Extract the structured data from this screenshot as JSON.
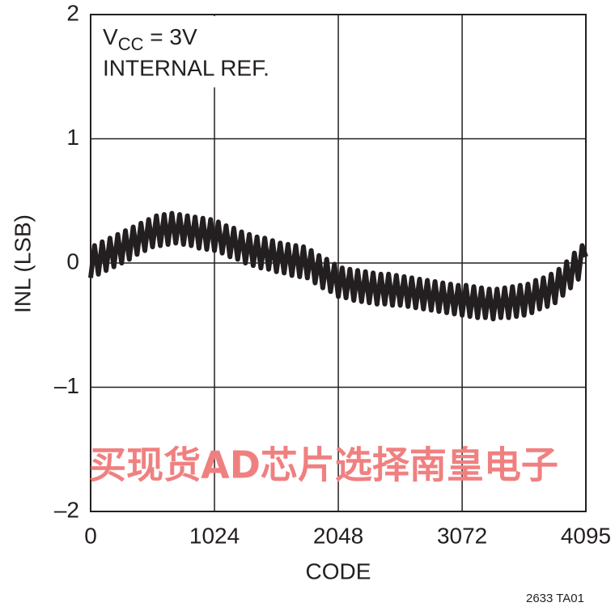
{
  "chart_data": {
    "type": "line",
    "ylabel": "INL (LSB)",
    "xlabel": "CODE",
    "annotation_vcc": {
      "base": "V",
      "subscript": "CC",
      "text": " = 3V"
    },
    "annotation_ref": "INTERNAL REF.",
    "watermark": "买现货AD芯片选择南皇电子",
    "footer": "2633 TA01",
    "xlim": [
      0,
      4095
    ],
    "xticks": [
      0,
      1024,
      2048,
      3072,
      4095
    ],
    "ylim": [
      -2,
      2
    ],
    "yticks": [
      {
        "value": -2,
        "label": "–2"
      },
      {
        "value": -1,
        "label": "–1"
      },
      0,
      1,
      2
    ],
    "grid": true,
    "x": [
      0,
      32,
      64,
      96,
      128,
      160,
      192,
      224,
      256,
      288,
      320,
      352,
      384,
      416,
      448,
      480,
      512,
      544,
      576,
      608,
      640,
      672,
      704,
      736,
      768,
      800,
      832,
      864,
      896,
      928,
      960,
      992,
      1024,
      1056,
      1088,
      1120,
      1152,
      1184,
      1216,
      1248,
      1280,
      1312,
      1344,
      1376,
      1408,
      1440,
      1472,
      1504,
      1536,
      1568,
      1600,
      1632,
      1664,
      1696,
      1728,
      1760,
      1792,
      1824,
      1856,
      1888,
      1920,
      1952,
      1984,
      2016,
      2048,
      2080,
      2112,
      2144,
      2176,
      2208,
      2240,
      2272,
      2304,
      2336,
      2368,
      2400,
      2432,
      2464,
      2496,
      2528,
      2560,
      2592,
      2624,
      2656,
      2688,
      2720,
      2752,
      2784,
      2816,
      2848,
      2880,
      2912,
      2944,
      2976,
      3008,
      3040,
      3072,
      3104,
      3136,
      3168,
      3200,
      3232,
      3264,
      3296,
      3328,
      3360,
      3392,
      3424,
      3456,
      3488,
      3520,
      3552,
      3584,
      3616,
      3648,
      3680,
      3712,
      3744,
      3776,
      3808,
      3840,
      3872,
      3904,
      3936,
      3968,
      4000,
      4032,
      4064,
      4095
    ],
    "series": [
      {
        "color": "#231f20",
        "values": [
          -0.12,
          0.14,
          -0.09,
          0.17,
          -0.06,
          0.2,
          -0.03,
          0.23,
          0,
          0.26,
          0.03,
          0.29,
          0.07,
          0.32,
          0.1,
          0.35,
          0.13,
          0.38,
          0.14,
          0.39,
          0.15,
          0.4,
          0.16,
          0.39,
          0.15,
          0.38,
          0.14,
          0.37,
          0.12,
          0.36,
          0.11,
          0.35,
          0.1,
          0.33,
          0.08,
          0.3,
          0.05,
          0.28,
          0.03,
          0.25,
          0,
          0.23,
          -0.02,
          0.21,
          -0.04,
          0.2,
          -0.05,
          0.18,
          -0.07,
          0.16,
          -0.08,
          0.15,
          -0.1,
          0.14,
          -0.11,
          0.13,
          -0.12,
          0.1,
          -0.16,
          0.06,
          -0.2,
          0.03,
          -0.23,
          -0.01,
          -0.27,
          -0.04,
          -0.28,
          -0.05,
          -0.3,
          -0.06,
          -0.31,
          -0.07,
          -0.32,
          -0.08,
          -0.33,
          -0.09,
          -0.33,
          -0.09,
          -0.34,
          -0.1,
          -0.34,
          -0.11,
          -0.35,
          -0.12,
          -0.36,
          -0.13,
          -0.37,
          -0.14,
          -0.38,
          -0.15,
          -0.39,
          -0.16,
          -0.4,
          -0.17,
          -0.41,
          -0.18,
          -0.42,
          -0.18,
          -0.43,
          -0.19,
          -0.44,
          -0.2,
          -0.44,
          -0.21,
          -0.45,
          -0.21,
          -0.44,
          -0.2,
          -0.44,
          -0.19,
          -0.43,
          -0.18,
          -0.42,
          -0.17,
          -0.4,
          -0.14,
          -0.37,
          -0.12,
          -0.35,
          -0.09,
          -0.32,
          -0.05,
          -0.26,
          0.01,
          -0.2,
          0.08,
          -0.13,
          0.14,
          0.05
        ]
      }
    ]
  }
}
